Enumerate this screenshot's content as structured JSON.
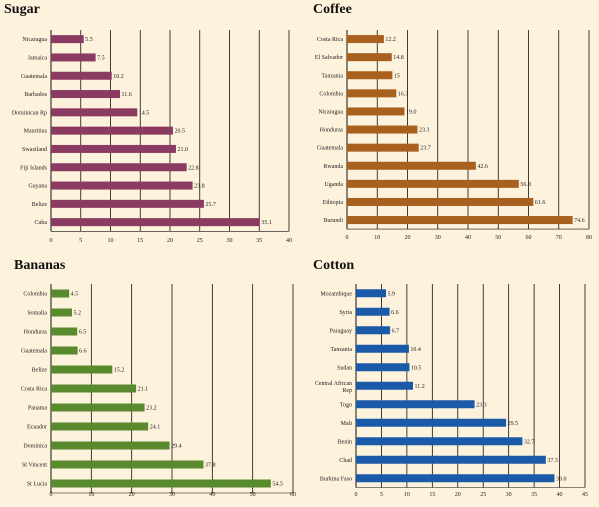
{
  "chart_data": [
    {
      "type": "bar",
      "orientation": "horizontal",
      "title": "Sugar",
      "categories": [
        "Nicaragua",
        "Jamaica",
        "Guatemala",
        "Barbados",
        "Dominican Rp",
        "Mauritius",
        "Swaziland",
        "Fiji Islands",
        "Guyana",
        "Belize",
        "Cuba"
      ],
      "values": [
        5.5,
        7.5,
        10.2,
        11.6,
        14.5,
        20.5,
        21.0,
        22.8,
        23.8,
        25.7,
        35.1
      ],
      "value_labels": [
        "5.5",
        "7.5",
        "10.2",
        "11.6",
        "14.5",
        "20.5",
        "21.0",
        "22.8",
        "23.8",
        "25.7",
        "35.1"
      ],
      "ticks": [
        "0",
        "5",
        "10",
        "15",
        "20",
        "25",
        "30",
        "35",
        "40"
      ],
      "xlim": [
        0,
        40
      ],
      "grid": true,
      "color": "#8b3a62"
    },
    {
      "type": "bar",
      "orientation": "horizontal",
      "title": "Coffee",
      "categories": [
        "Costa Rica",
        "El Salvador",
        "Tanzania",
        "Colombia",
        "Nicaragua",
        "Honduras",
        "Guatemala",
        "Rwanda",
        "Uganda",
        "Ethiopia",
        "Burundi"
      ],
      "values": [
        12.2,
        14.8,
        15.0,
        16.3,
        19.0,
        23.3,
        23.7,
        42.6,
        56.8,
        61.6,
        74.6
      ],
      "value_labels": [
        "12.2",
        "14.8",
        "15",
        "16.3",
        "19.0",
        "23.3",
        "23.7",
        "42.6",
        "56.8",
        "61.6",
        "74.6"
      ],
      "ticks": [
        "0",
        "10",
        "20",
        "30",
        "40",
        "50",
        "60",
        "70",
        "80"
      ],
      "xlim": [
        0,
        80
      ],
      "grid": true,
      "color": "#a8601e"
    },
    {
      "type": "bar",
      "orientation": "horizontal",
      "title": "Bananas",
      "categories": [
        "Colombia",
        "Somalia",
        "Honduras",
        "Guatemala",
        "Belize",
        "Costa Rica",
        "Panama",
        "Ecuador",
        "Dominica",
        "St Vincent",
        "St Lucia"
      ],
      "values": [
        4.5,
        5.2,
        6.5,
        6.6,
        15.2,
        21.1,
        23.2,
        24.1,
        29.4,
        37.8,
        54.5
      ],
      "value_labels": [
        "4.5",
        "5.2",
        "6.5",
        "6.6",
        "15.2",
        "21.1",
        "23.2",
        "24.1",
        "29.4",
        "37.8",
        "54.5"
      ],
      "ticks": [
        "0",
        "10",
        "20",
        "30",
        "40",
        "50",
        "60"
      ],
      "xlim": [
        0,
        60
      ],
      "grid": true,
      "color": "#5a8a2e"
    },
    {
      "type": "bar",
      "orientation": "horizontal",
      "title": "Cotton",
      "categories": [
        "Mozambique",
        "Syria",
        "Paraguay",
        "Tanzania",
        "Sudan",
        "Central African Rep",
        "Togo",
        "Mali",
        "Benin",
        "Chad",
        "Burkina Faso"
      ],
      "values": [
        5.9,
        6.6,
        6.7,
        10.4,
        10.5,
        11.2,
        23.3,
        29.5,
        32.7,
        37.3,
        39.0
      ],
      "value_labels": [
        "5.9",
        "6.6",
        "6.7",
        "10.4",
        "10.5",
        "11.2",
        "23.3",
        "29.5",
        "32.7",
        "37.3",
        "39.0"
      ],
      "ticks": [
        "0",
        "5",
        "10",
        "15",
        "20",
        "25",
        "30",
        "35",
        "40",
        "45"
      ],
      "xlim": [
        0,
        45
      ],
      "grid": true,
      "color": "#1a5aa8"
    }
  ]
}
